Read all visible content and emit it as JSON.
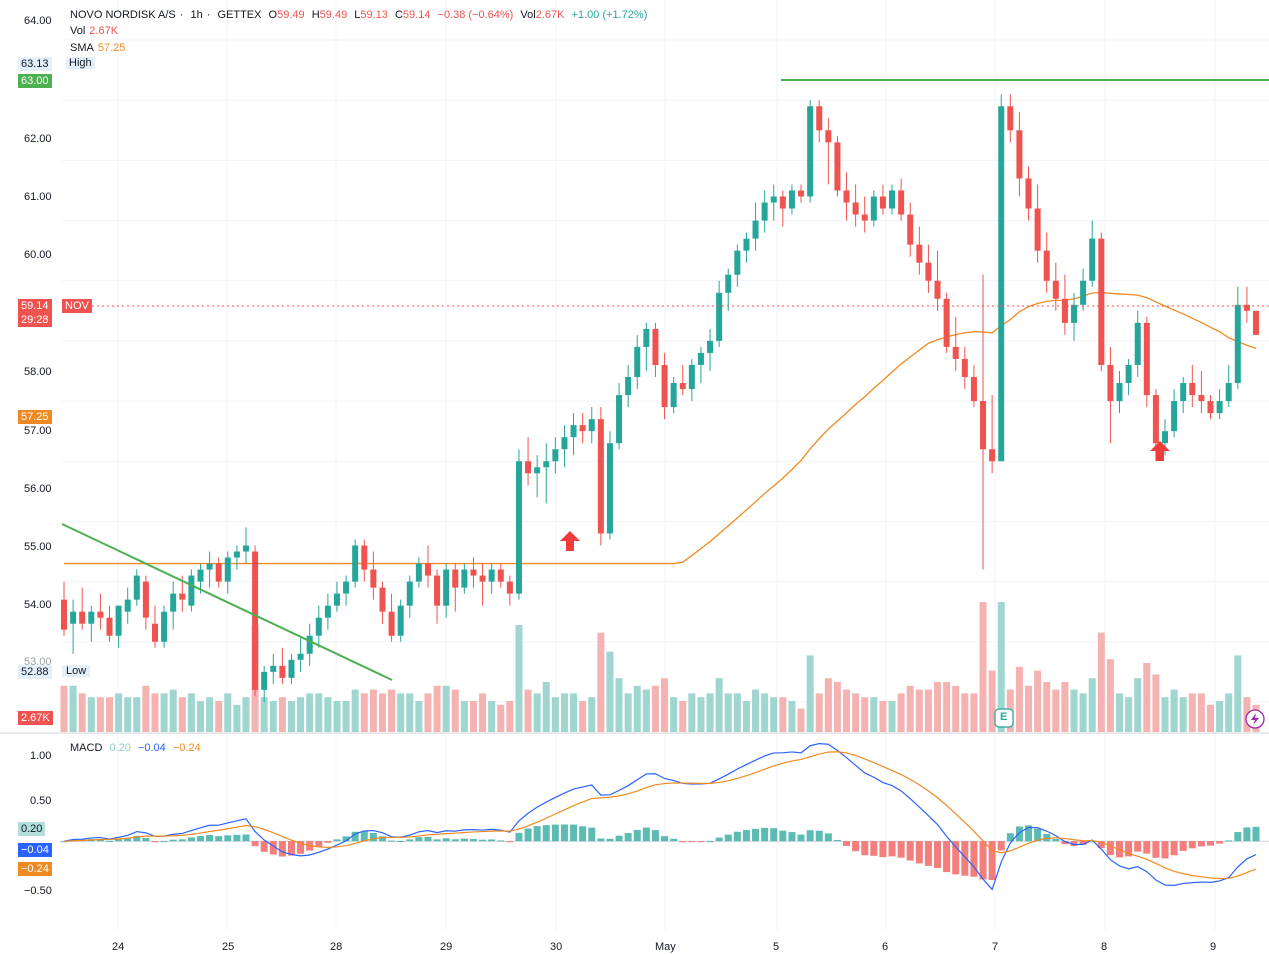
{
  "header": {
    "symbol": "NOVO NORDISK A/S",
    "interval": "1h",
    "exchange": "GETTEX",
    "o_label": "O",
    "o_value": "59.49",
    "h_label": "H",
    "h_value": "59.49",
    "l_label": "L",
    "l_value": "59.13",
    "c_label": "C",
    "c_value": "59.14",
    "change": "−0.38 (−0.64%)",
    "vol_label": "Vol",
    "vol_value": "2.67K",
    "vol_change": "+1.00 (+1.72%)"
  },
  "indicators": {
    "vol_label": "Vol",
    "vol_value": "2.67K",
    "sma_label": "SMA",
    "sma_value": "57.25",
    "macd_label": "MACD",
    "macd_v1": "0.20",
    "macd_v2": "−0.04",
    "macd_v3": "−0.24"
  },
  "price_scale": {
    "ticks": [
      "64.00",
      "62.00",
      "61.00",
      "60.00",
      "58.00",
      "57.00",
      "56.00",
      "55.00",
      "54.00",
      "53.00"
    ],
    "high_value": "63.13",
    "high_label": "High",
    "low_value": "52.88",
    "low_label": "Low",
    "resistance_tag": "63.00",
    "sma_tag": "57.25",
    "last_price": "59.14",
    "countdown": "29:28",
    "symbol_tag": "NOV",
    "volume_tag": "2.67K"
  },
  "macd_scale": {
    "ticks": [
      "1.00",
      "0.50",
      "−0.50"
    ],
    "tag_macd_hist": "0.20",
    "tag_macd": "−0.04",
    "tag_signal": "−0.24"
  },
  "time_axis": {
    "labels": [
      "24",
      "25",
      "28",
      "29",
      "30",
      "May",
      "5",
      "6",
      "7",
      "8",
      "9"
    ]
  },
  "earnings_marker": "E",
  "colors": {
    "up": "#26a69a",
    "down": "#ef5350",
    "sma": "#ef8a22",
    "trend": "#4caf50",
    "macd_line": "#2962ff",
    "signal_line": "#ef8a22"
  },
  "chart_data": {
    "type": "candlestick",
    "title": "NOVO NORDISK A/S · 1h · GETTEX",
    "ylim": [
      52.6,
      64.3
    ],
    "x_sessions": [
      "24",
      "25",
      "28",
      "29",
      "30",
      "May",
      "5",
      "6",
      "7",
      "8",
      "9"
    ],
    "candles": [
      [
        54.7,
        55.0,
        54.1,
        54.2
      ],
      [
        54.3,
        54.7,
        53.8,
        54.5
      ],
      [
        54.5,
        54.9,
        54.2,
        54.3
      ],
      [
        54.3,
        54.6,
        54.0,
        54.5
      ],
      [
        54.5,
        54.8,
        54.2,
        54.4
      ],
      [
        54.4,
        54.6,
        54.0,
        54.1
      ],
      [
        54.1,
        54.6,
        53.9,
        54.6
      ],
      [
        54.5,
        54.9,
        54.3,
        54.7
      ],
      [
        54.7,
        55.2,
        54.6,
        55.1
      ],
      [
        55.0,
        55.1,
        54.2,
        54.4
      ],
      [
        54.3,
        54.6,
        53.9,
        54.0
      ],
      [
        54.0,
        54.6,
        53.9,
        54.5
      ],
      [
        54.5,
        55.0,
        54.2,
        54.8
      ],
      [
        54.8,
        55.1,
        54.5,
        54.7
      ],
      [
        54.6,
        55.2,
        54.5,
        55.1
      ],
      [
        55.0,
        55.3,
        54.8,
        55.2
      ],
      [
        55.2,
        55.5,
        54.9,
        55.3
      ],
      [
        55.3,
        55.4,
        54.9,
        55.0
      ],
      [
        55.0,
        55.5,
        54.8,
        55.4
      ],
      [
        55.4,
        55.6,
        55.2,
        55.5
      ],
      [
        55.5,
        55.9,
        55.3,
        55.6
      ],
      [
        55.5,
        55.6,
        53.1,
        53.2
      ],
      [
        53.2,
        53.6,
        53.0,
        53.5
      ],
      [
        53.5,
        53.8,
        53.3,
        53.6
      ],
      [
        53.6,
        53.9,
        53.3,
        53.4
      ],
      [
        53.4,
        53.8,
        53.3,
        53.7
      ],
      [
        53.7,
        54.1,
        53.5,
        53.8
      ],
      [
        53.8,
        54.3,
        53.6,
        54.1
      ],
      [
        54.1,
        54.6,
        53.9,
        54.4
      ],
      [
        54.4,
        54.8,
        54.2,
        54.6
      ],
      [
        54.6,
        55.0,
        54.5,
        54.8
      ],
      [
        54.8,
        55.1,
        54.6,
        55.0
      ],
      [
        55.0,
        55.7,
        54.9,
        55.6
      ],
      [
        55.6,
        55.7,
        55.0,
        55.2
      ],
      [
        55.2,
        55.5,
        54.7,
        54.9
      ],
      [
        54.9,
        55.0,
        54.3,
        54.5
      ],
      [
        54.5,
        54.8,
        54.0,
        54.1
      ],
      [
        54.1,
        54.7,
        54.0,
        54.6
      ],
      [
        54.6,
        55.1,
        54.4,
        55.0
      ],
      [
        55.0,
        55.4,
        54.9,
        55.3
      ],
      [
        55.3,
        55.6,
        54.9,
        55.1
      ],
      [
        55.1,
        55.2,
        54.3,
        54.6
      ],
      [
        54.6,
        55.3,
        54.4,
        55.2
      ],
      [
        55.2,
        55.3,
        54.5,
        54.9
      ],
      [
        54.9,
        55.3,
        54.8,
        55.2
      ],
      [
        55.2,
        55.4,
        54.9,
        55.1
      ],
      [
        55.1,
        55.3,
        54.6,
        55.0
      ],
      [
        55.0,
        55.3,
        54.8,
        55.2
      ],
      [
        55.2,
        55.3,
        54.9,
        55.0
      ],
      [
        55.0,
        55.1,
        54.6,
        54.8
      ],
      [
        54.8,
        57.2,
        54.7,
        57.0
      ],
      [
        57.0,
        57.4,
        56.6,
        56.8
      ],
      [
        56.8,
        57.1,
        56.4,
        56.9
      ],
      [
        56.9,
        57.3,
        56.3,
        57.0
      ],
      [
        57.0,
        57.4,
        56.8,
        57.2
      ],
      [
        57.2,
        57.6,
        56.9,
        57.4
      ],
      [
        57.4,
        57.8,
        57.1,
        57.6
      ],
      [
        57.6,
        57.8,
        57.3,
        57.5
      ],
      [
        57.5,
        57.9,
        57.3,
        57.7
      ],
      [
        57.7,
        57.9,
        55.6,
        55.8
      ],
      [
        55.8,
        57.5,
        55.7,
        57.3
      ],
      [
        57.3,
        58.3,
        57.2,
        58.1
      ],
      [
        58.1,
        58.6,
        57.9,
        58.4
      ],
      [
        58.4,
        59.1,
        58.2,
        58.9
      ],
      [
        58.9,
        59.3,
        58.5,
        59.2
      ],
      [
        59.2,
        59.3,
        58.4,
        58.6
      ],
      [
        58.6,
        58.8,
        57.7,
        57.9
      ],
      [
        57.9,
        58.4,
        57.8,
        58.3
      ],
      [
        58.3,
        58.6,
        58.1,
        58.2
      ],
      [
        58.2,
        58.7,
        58.0,
        58.6
      ],
      [
        58.6,
        58.9,
        58.3,
        58.8
      ],
      [
        58.8,
        59.2,
        58.5,
        59.0
      ],
      [
        59.0,
        60.0,
        58.9,
        59.8
      ],
      [
        59.8,
        60.2,
        59.5,
        60.1
      ],
      [
        60.1,
        60.6,
        59.9,
        60.5
      ],
      [
        60.5,
        60.8,
        60.3,
        60.7
      ],
      [
        60.7,
        61.3,
        60.5,
        61.0
      ],
      [
        61.0,
        61.5,
        60.8,
        61.3
      ],
      [
        61.3,
        61.6,
        61.0,
        61.4
      ],
      [
        61.4,
        61.5,
        60.9,
        61.2
      ],
      [
        61.2,
        61.6,
        61.1,
        61.5
      ],
      [
        61.5,
        61.6,
        61.3,
        61.4
      ],
      [
        61.4,
        63.0,
        61.3,
        62.9
      ],
      [
        62.9,
        63.0,
        62.3,
        62.5
      ],
      [
        62.5,
        62.7,
        61.6,
        62.3
      ],
      [
        62.3,
        62.4,
        61.4,
        61.5
      ],
      [
        61.5,
        61.8,
        61.0,
        61.3
      ],
      [
        61.3,
        61.6,
        60.9,
        61.1
      ],
      [
        61.1,
        61.4,
        60.8,
        61.0
      ],
      [
        61.0,
        61.5,
        60.9,
        61.4
      ],
      [
        61.4,
        61.6,
        61.1,
        61.2
      ],
      [
        61.2,
        61.6,
        61.1,
        61.5
      ],
      [
        61.5,
        61.7,
        61.0,
        61.1
      ],
      [
        61.1,
        61.3,
        60.4,
        60.6
      ],
      [
        60.6,
        60.9,
        60.1,
        60.3
      ],
      [
        60.3,
        60.6,
        59.8,
        60.0
      ],
      [
        60.0,
        60.5,
        59.5,
        59.7
      ],
      [
        59.7,
        59.8,
        58.8,
        58.9
      ],
      [
        58.9,
        59.4,
        58.5,
        58.7
      ],
      [
        58.7,
        58.9,
        58.2,
        58.4
      ],
      [
        58.4,
        58.6,
        57.9,
        58.0
      ],
      [
        58.0,
        60.1,
        55.2,
        57.2
      ],
      [
        57.2,
        58.1,
        56.8,
        57.0
      ],
      [
        57.0,
        63.1,
        57.0,
        62.9
      ],
      [
        62.9,
        63.1,
        62.3,
        62.5
      ],
      [
        62.5,
        62.8,
        61.4,
        61.7
      ],
      [
        61.7,
        61.9,
        61.0,
        61.2
      ],
      [
        61.2,
        61.6,
        60.3,
        60.5
      ],
      [
        60.5,
        60.8,
        59.8,
        60.0
      ],
      [
        60.0,
        60.3,
        59.5,
        59.7
      ],
      [
        59.7,
        60.1,
        59.1,
        59.3
      ],
      [
        59.3,
        59.8,
        59.0,
        59.6
      ],
      [
        59.6,
        60.2,
        59.5,
        60.0
      ],
      [
        60.0,
        61.0,
        59.9,
        60.7
      ],
      [
        60.7,
        60.8,
        58.5,
        58.6
      ],
      [
        58.6,
        58.9,
        57.3,
        58.0
      ],
      [
        58.0,
        58.5,
        57.8,
        58.3
      ],
      [
        58.3,
        58.7,
        58.1,
        58.6
      ],
      [
        58.6,
        59.5,
        58.4,
        59.3
      ],
      [
        59.3,
        59.4,
        57.9,
        58.1
      ],
      [
        58.1,
        58.2,
        57.0,
        57.3
      ],
      [
        57.3,
        57.7,
        57.1,
        57.5
      ],
      [
        57.5,
        58.2,
        57.4,
        58.0
      ],
      [
        58.0,
        58.4,
        57.8,
        58.3
      ],
      [
        58.3,
        58.6,
        57.9,
        58.1
      ],
      [
        58.1,
        58.5,
        57.8,
        58.0
      ],
      [
        58.0,
        58.1,
        57.7,
        57.8
      ],
      [
        57.8,
        58.2,
        57.7,
        58.0
      ],
      [
        58.0,
        58.6,
        57.9,
        58.3
      ],
      [
        58.3,
        59.9,
        58.2,
        59.6
      ],
      [
        59.6,
        59.9,
        59.3,
        59.5
      ],
      [
        59.5,
        59.5,
        59.1,
        59.1
      ]
    ],
    "volume_last": "2.67K",
    "sma_last": 57.25,
    "resistance_level": 63.0,
    "macd": {
      "ylim": [
        -1.2,
        1.3
      ],
      "macd_last": -0.04,
      "signal_last": -0.24,
      "hist_last": 0.2
    }
  }
}
